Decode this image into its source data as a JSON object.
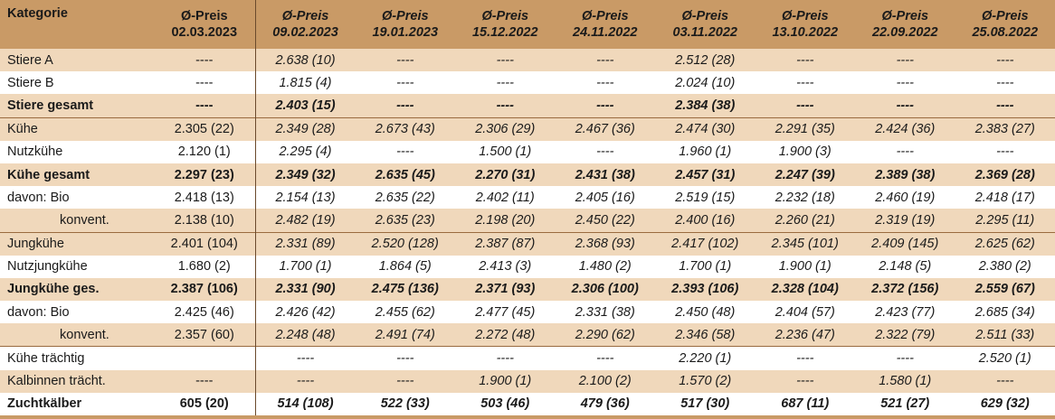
{
  "header": {
    "category_label": "Kategorie",
    "columns": [
      {
        "label": "Ø-Preis",
        "date": "02.03.2023"
      },
      {
        "label": "Ø-Preis",
        "date": "09.02.2023"
      },
      {
        "label": "Ø-Preis",
        "date": "19.01.2023"
      },
      {
        "label": "Ø-Preis",
        "date": "15.12.2022"
      },
      {
        "label": "Ø-Preis",
        "date": "24.11.2022"
      },
      {
        "label": "Ø-Preis",
        "date": "03.11.2022"
      },
      {
        "label": "Ø-Preis",
        "date": "13.10.2022"
      },
      {
        "label": "Ø-Preis",
        "date": "22.09.2022"
      },
      {
        "label": "Ø-Preis",
        "date": "25.08.2022"
      }
    ]
  },
  "rows": [
    {
      "category": "Stiere A",
      "cells": [
        "----",
        "2.638 (10)",
        "----",
        "----",
        "----",
        "2.512 (28)",
        "----",
        "----",
        "----"
      ]
    },
    {
      "category": "Stiere B",
      "cells": [
        "----",
        "1.815 (4)",
        "----",
        "----",
        "----",
        "2.024 (10)",
        "----",
        "----",
        "----"
      ]
    },
    {
      "category": "Stiere gesamt",
      "cells": [
        "----",
        "2.403 (15)",
        "----",
        "----",
        "----",
        "2.384 (38)",
        "----",
        "----",
        "----"
      ]
    },
    {
      "category": "Kühe",
      "cells": [
        "2.305 (22)",
        "2.349 (28)",
        "2.673 (43)",
        "2.306 (29)",
        "2.467 (36)",
        "2.474 (30)",
        "2.291 (35)",
        "2.424 (36)",
        "2.383 (27)"
      ]
    },
    {
      "category": "Nutzkühe",
      "cells": [
        "2.120 (1)",
        "2.295 (4)",
        "----",
        "1.500 (1)",
        "----",
        "1.960 (1)",
        "1.900 (3)",
        "----",
        "----"
      ]
    },
    {
      "category": "Kühe gesamt",
      "cells": [
        "2.297 (23)",
        "2.349 (32)",
        "2.635 (45)",
        "2.270 (31)",
        "2.431 (38)",
        "2.457 (31)",
        "2.247 (39)",
        "2.389 (38)",
        "2.369 (28)"
      ]
    },
    {
      "category": "davon: Bio",
      "cells": [
        "2.418 (13)",
        "2.154 (13)",
        "2.635 (22)",
        "2.402 (11)",
        "2.405 (16)",
        "2.519 (15)",
        "2.232 (18)",
        "2.460 (19)",
        "2.418 (17)"
      ]
    },
    {
      "category": "konvent.",
      "cells": [
        "2.138 (10)",
        "2.482 (19)",
        "2.635 (23)",
        "2.198 (20)",
        "2.450 (22)",
        "2.400 (16)",
        "2.260 (21)",
        "2.319 (19)",
        "2.295 (11)"
      ]
    },
    {
      "category": "Jungkühe",
      "cells": [
        "2.401 (104)",
        "2.331 (89)",
        "2.520 (128)",
        "2.387 (87)",
        "2.368 (93)",
        "2.417 (102)",
        "2.345 (101)",
        "2.409 (145)",
        "2.625 (62)"
      ]
    },
    {
      "category": "Nutzjungkühe",
      "cells": [
        "1.680 (2)",
        "1.700 (1)",
        "1.864 (5)",
        "2.413 (3)",
        "1.480 (2)",
        "1.700 (1)",
        "1.900 (1)",
        "2.148 (5)",
        "2.380 (2)"
      ]
    },
    {
      "category": "Jungkühe ges.",
      "cells": [
        "2.387 (106)",
        "2.331 (90)",
        "2.475 (136)",
        "2.371 (93)",
        "2.306 (100)",
        "2.393 (106)",
        "2.328 (104)",
        "2.372 (156)",
        "2.559 (67)"
      ]
    },
    {
      "category": "davon: Bio",
      "cells": [
        "2.425 (46)",
        "2.426 (42)",
        "2.455 (62)",
        "2.477 (45)",
        "2.331 (38)",
        "2.450 (48)",
        "2.404 (57)",
        "2.423 (77)",
        "2.685 (34)"
      ]
    },
    {
      "category": "konvent.",
      "cells": [
        "2.357 (60)",
        "2.248 (48)",
        "2.491 (74)",
        "2.272 (48)",
        "2.290 (62)",
        "2.346 (58)",
        "2.236 (47)",
        "2.322 (79)",
        "2.511 (33)"
      ]
    },
    {
      "category": "Kühe trächtig",
      "cells": [
        "",
        "----",
        "----",
        "----",
        "----",
        "2.220 (1)",
        "----",
        "----",
        "2.520 (1)"
      ]
    },
    {
      "category": "Kalbinnen trächt.",
      "cells": [
        "----",
        "----",
        "----",
        "1.900 (1)",
        "2.100 (2)",
        "1.570 (2)",
        "----",
        "1.580 (1)",
        "----"
      ]
    },
    {
      "category": "Zuchtkälber",
      "cells": [
        "605 (20)",
        "514 (108)",
        "522 (33)",
        "503 (46)",
        "479 (36)",
        "517 (30)",
        "687 (11)",
        "521 (27)",
        "629 (32)"
      ]
    }
  ]
}
